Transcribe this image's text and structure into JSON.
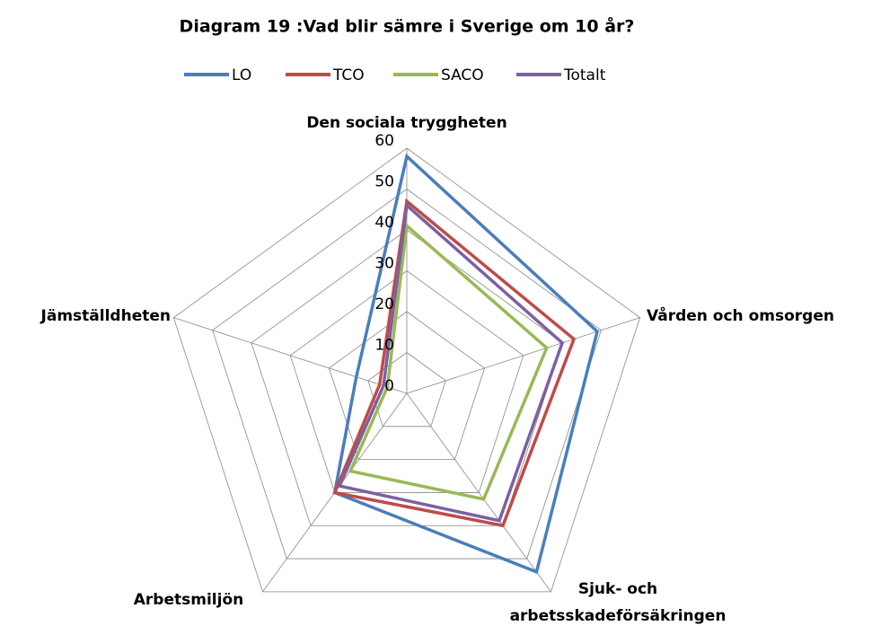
{
  "chart_data": {
    "type": "radar",
    "title": "Diagram 19 :Vad blir sämre i Sverige om 10 år?",
    "categories": [
      "Den sociala tryggheten",
      "Vården och omsorgen",
      "Sjuk- och arbetsskadeförsäkringen",
      "Arbetsmiljön",
      "Jämställdheten"
    ],
    "series": [
      {
        "name": "LO",
        "color": "#4a7ebb",
        "values": [
          58,
          49,
          54,
          30,
          13
        ]
      },
      {
        "name": "TCO",
        "color": "#be4b48",
        "values": [
          47,
          43,
          40,
          30,
          7
        ]
      },
      {
        "name": "SACO",
        "color": "#98b954",
        "values": [
          41,
          36,
          32,
          23.5,
          5
        ]
      },
      {
        "name": "Totalt",
        "color": "#7d60a0",
        "values": [
          46,
          40,
          38.5,
          28,
          6
        ]
      }
    ],
    "ylim": [
      0,
      60
    ],
    "yticks": [
      0,
      10,
      20,
      30,
      40,
      50,
      60
    ],
    "grid": true
  }
}
